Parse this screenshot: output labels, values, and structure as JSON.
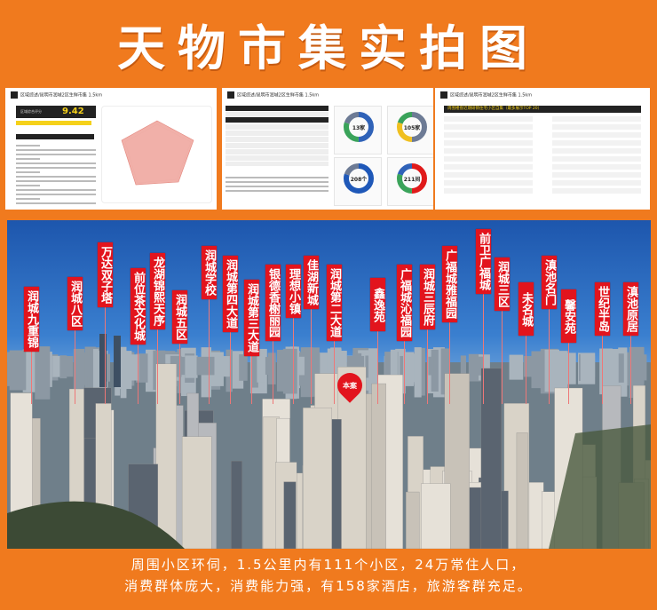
{
  "title": "天物市集实拍图",
  "cards": {
    "header": "区域综述/昆明市润城2区生鲜市集 1.5km",
    "score_label": "区域综合评分",
    "score": "9.42",
    "donuts": [
      {
        "label": "13家",
        "colors": [
          "#2f62b8",
          "#3aa35a",
          "#6d7b95"
        ]
      },
      {
        "label": "105家",
        "colors": [
          "#6d7b95",
          "#f0c020",
          "#3aa35a"
        ]
      },
      {
        "label": "208个",
        "colors": [
          "#1f58b8",
          "#6d7b95"
        ]
      },
      {
        "label": "211间",
        "colors": [
          "#e01a1a",
          "#3aa35a",
          "#2f62b8"
        ]
      }
    ],
    "table_title": "周围楼盘近期研销住宅小区自集（最多展示TOP 20）"
  },
  "landmarks": [
    "润城九重锦",
    "润城八区",
    "万达双子塔",
    "前位茶文化城",
    "龙湖锦熙天序",
    "润城五区",
    "润城学校",
    "润城第四大道",
    "润城第三大道",
    "银德香榭丽园",
    "理想小镇",
    "佳湖新城",
    "润城第二大道",
    "鑫逸苑",
    "广福城沁福园",
    "润城三辰府",
    "广福城雅福园",
    "前卫广福城",
    "润城三区",
    "未名城",
    "滇池名门",
    "馨安苑",
    "世纪半岛",
    "滇池原居"
  ],
  "marker": "本案",
  "footer": {
    "line1": "周围小区环伺，1.5公里内有111个小区，24万常住人口，",
    "line2": "消费群体庞大，消费能力强，有158家酒店，旅游客群充足。"
  },
  "colors": {
    "brand_orange": "#f07a1e",
    "flag_red": "#e2141d",
    "score_yellow": "#f5d11a"
  }
}
